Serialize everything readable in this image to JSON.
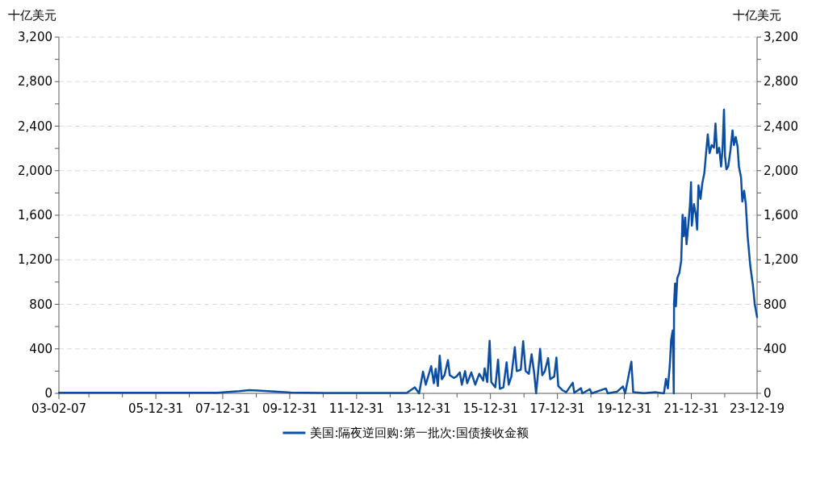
{
  "chart_data": {
    "type": "line",
    "ylabel": "十亿美元",
    "y2label": "十亿美元",
    "x": [
      "2003-02-07",
      "2005-06-30",
      "2007-10-31",
      "2008-06-30",
      "2008-10-15",
      "2009-01-15",
      "2010-01-15",
      "2011-01-15",
      "2013-06-30",
      "2013-09-26",
      "2013-11-12",
      "2013-12-25",
      "2014-01-24",
      "2014-03-24",
      "2014-04-22",
      "2014-05-12",
      "2014-06-05",
      "2014-06-25",
      "2014-07-18",
      "2014-08-16",
      "2014-09-23",
      "2014-10-13",
      "2014-11-26",
      "2014-12-25",
      "2015-01-30",
      "2015-02-22",
      "2015-03-29",
      "2015-04-21",
      "2015-06-05",
      "2015-07-18",
      "2015-08-31",
      "2015-10-13",
      "2015-10-28",
      "2015-11-26",
      "2015-12-22",
      "2016-01-09",
      "2016-02-22",
      "2016-03-23",
      "2016-04-12",
      "2016-05-20",
      "2016-06-24",
      "2016-07-17",
      "2016-08-15",
      "2016-09-22",
      "2016-10-13",
      "2016-11-26",
      "2016-12-22",
      "2017-01-18",
      "2017-02-22",
      "2017-03-24",
      "2017-04-22",
      "2017-05-12",
      "2017-06-04",
      "2017-06-25",
      "2017-07-18",
      "2017-08-16",
      "2017-09-20",
      "2017-10-13",
      "2017-11-26",
      "2017-12-20",
      "2018-01-09",
      "2018-02-22",
      "2018-04-06",
      "2018-06-16",
      "2018-07-03",
      "2018-09-14",
      "2018-09-28",
      "2018-12-20",
      "2019-01-09",
      "2019-06-13",
      "2019-07-03",
      "2019-10-13",
      "2019-12-16",
      "2020-01-09",
      "2020-03-17",
      "2020-04-06",
      "2020-08-01",
      "2020-12-10",
      "2021-03-07",
      "2021-03-30",
      "2021-04-19",
      "2021-05-10",
      "2021-05-25",
      "2021-06-11",
      "2021-06-23",
      "2021-06-26",
      "2021-07-07",
      "2021-07-16",
      "2021-07-31",
      "2021-08-23",
      "2021-09-12",
      "2021-09-27",
      "2021-10-11",
      "2021-10-26",
      "2021-11-09",
      "2021-11-29",
      "2021-12-17",
      "2021-12-28",
      "2022-01-06",
      "2022-01-29",
      "2022-02-19",
      "2022-03-05",
      "2022-03-19",
      "2022-04-11",
      "2022-05-01",
      "2022-05-22",
      "2022-06-09",
      "2022-06-29",
      "2022-07-19",
      "2022-08-11",
      "2022-09-04",
      "2022-09-21",
      "2022-10-09",
      "2022-11-01",
      "2022-11-21",
      "2022-12-06",
      "2022-12-23",
      "2023-01-03",
      "2023-01-18",
      "2023-02-07",
      "2023-03-03",
      "2023-03-26",
      "2023-04-10",
      "2023-04-30",
      "2023-05-20",
      "2023-06-04",
      "2023-06-27",
      "2023-07-11",
      "2023-07-31",
      "2023-08-18",
      "2023-09-07",
      "2023-10-06",
      "2023-11-03",
      "2023-11-23",
      "2023-12-19"
    ],
    "series": [
      {
        "name": "美国:隔夜逆回购:第一批次:国债接收金额",
        "color": "#0b4ea2",
        "values": [
          5,
          5,
          5,
          20,
          29,
          25,
          8,
          3,
          3,
          54,
          0,
          195,
          78,
          244,
          90,
          220,
          66,
          339,
          127,
          163,
          298,
          163,
          139,
          151,
          188,
          78,
          200,
          90,
          188,
          78,
          176,
          115,
          224,
          102,
          473,
          102,
          54,
          303,
          41,
          54,
          278,
          78,
          151,
          415,
          200,
          212,
          468,
          200,
          176,
          351,
          176,
          0,
          200,
          400,
          163,
          200,
          317,
          127,
          151,
          322,
          66,
          29,
          10,
          95,
          5,
          46,
          0,
          37,
          0,
          44,
          0,
          15,
          63,
          0,
          285,
          10,
          2,
          10,
          0,
          130,
          45,
          250,
          480,
          564,
          0,
          806,
          986,
          782,
          1035,
          1083,
          1192,
          1604,
          1411,
          1578,
          1339,
          1518,
          1700,
          1897,
          1506,
          1700,
          1604,
          1470,
          1868,
          1747,
          1892,
          1976,
          2145,
          2326,
          2157,
          2230,
          2206,
          2423,
          2157,
          2206,
          2037,
          2181,
          2548,
          2133,
          2012,
          2037,
          2181,
          2362,
          2230,
          2302,
          2218,
          2037,
          1940,
          1723,
          1820,
          1700,
          1411,
          1144,
          975,
          806,
          685
        ]
      }
    ],
    "xlim": [
      "2003-02-07",
      "2023-12-19"
    ],
    "xticks": [
      {
        "value": "2003-02-07",
        "label": "03-02-07"
      },
      {
        "value": "2003-12-31",
        "label": null
      },
      {
        "value": "2004-12-31",
        "label": null
      },
      {
        "value": "2005-12-31",
        "label": "05-12-31"
      },
      {
        "value": "2006-12-31",
        "label": null
      },
      {
        "value": "2007-12-31",
        "label": "07-12-31"
      },
      {
        "value": "2008-12-31",
        "label": null
      },
      {
        "value": "2009-12-31",
        "label": "09-12-31"
      },
      {
        "value": "2010-12-31",
        "label": null
      },
      {
        "value": "2011-12-31",
        "label": "11-12-31"
      },
      {
        "value": "2012-12-31",
        "label": null
      },
      {
        "value": "2013-12-31",
        "label": "13-12-31"
      },
      {
        "value": "2014-12-31",
        "label": null
      },
      {
        "value": "2015-12-31",
        "label": "15-12-31"
      },
      {
        "value": "2016-12-31",
        "label": null
      },
      {
        "value": "2017-12-31",
        "label": "17-12-31"
      },
      {
        "value": "2018-12-31",
        "label": null
      },
      {
        "value": "2019-12-31",
        "label": "19-12-31"
      },
      {
        "value": "2020-12-31",
        "label": null
      },
      {
        "value": "2021-12-31",
        "label": "21-12-31"
      },
      {
        "value": "2022-12-31",
        "label": null
      },
      {
        "value": "2023-12-19",
        "label": "23-12-19"
      }
    ],
    "ylim": [
      0,
      3200
    ],
    "yticks": [
      {
        "value": 0,
        "label": "0"
      },
      {
        "value": 200,
        "label": null
      },
      {
        "value": 400,
        "label": "400"
      },
      {
        "value": 600,
        "label": null
      },
      {
        "value": 800,
        "label": "800"
      },
      {
        "value": 1000,
        "label": null
      },
      {
        "value": 1200,
        "label": "1,200"
      },
      {
        "value": 1400,
        "label": null
      },
      {
        "value": 1600,
        "label": "1,600"
      },
      {
        "value": 1800,
        "label": null
      },
      {
        "value": 2000,
        "label": "2,000"
      },
      {
        "value": 2200,
        "label": null
      },
      {
        "value": 2400,
        "label": "2,400"
      },
      {
        "value": 2600,
        "label": null
      },
      {
        "value": 2800,
        "label": "2,800"
      },
      {
        "value": 3000,
        "label": null
      },
      {
        "value": 3200,
        "label": "3,200"
      }
    ],
    "y2lim": [
      0,
      3200
    ],
    "y2ticks": [
      {
        "value": 0,
        "label": "0"
      },
      {
        "value": 200,
        "label": null
      },
      {
        "value": 400,
        "label": "400"
      },
      {
        "value": 600,
        "label": null
      },
      {
        "value": 800,
        "label": "800"
      },
      {
        "value": 1000,
        "label": null
      },
      {
        "value": 1200,
        "label": "1,200"
      },
      {
        "value": 1400,
        "label": null
      },
      {
        "value": 1600,
        "label": "1,600"
      },
      {
        "value": 1800,
        "label": null
      },
      {
        "value": 2000,
        "label": "2,000"
      },
      {
        "value": 2200,
        "label": null
      },
      {
        "value": 2400,
        "label": "2,400"
      },
      {
        "value": 2600,
        "label": null
      },
      {
        "value": 2800,
        "label": "2,800"
      },
      {
        "value": 3000,
        "label": null
      },
      {
        "value": 3200,
        "label": "3,200"
      }
    ],
    "grid": "y",
    "legend": "bottom"
  }
}
